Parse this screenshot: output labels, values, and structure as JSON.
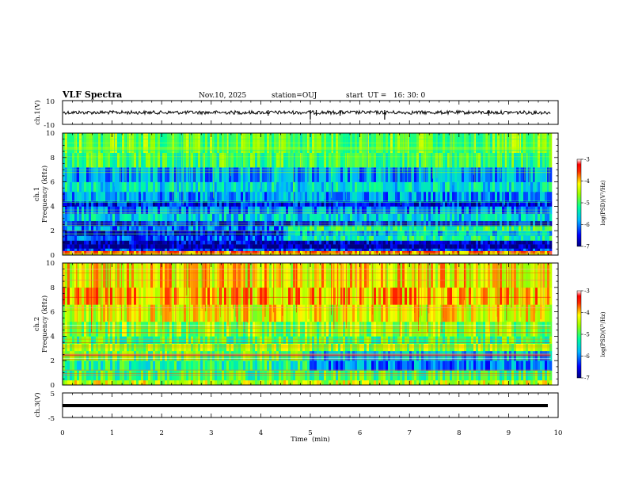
{
  "header": {
    "title": "VLF Spectra",
    "date": "Nov.10, 2025",
    "station": "station=OUJ",
    "start": "start  UT =   16: 30: 0"
  },
  "chart_data": [
    {
      "type": "line",
      "panel": "ch1-waveform",
      "ylabel": "ch.1(V)",
      "ylim": [
        -10,
        10
      ],
      "y_ticks": [
        "10",
        "-10"
      ],
      "xlim": [
        0,
        10
      ],
      "baseline_level": 0,
      "spike_times_min": [
        4.15,
        5.0,
        5.12,
        5.6,
        6.5,
        8.6
      ],
      "line_color": "#000000"
    },
    {
      "type": "heatmap",
      "panel": "ch1-spectrogram",
      "ylabel": "ch.1\nFrequency (kHz)",
      "ylabel_lines": [
        "ch.1",
        "Frequency (kHz)"
      ],
      "ylim": [
        0,
        10
      ],
      "y_ticks": [
        "0",
        "2",
        "4",
        "6",
        "8",
        "10"
      ],
      "xlim": [
        0,
        10
      ],
      "data_end_min": 9.85,
      "bands_khz_level": [
        [
          0.0,
          0.35,
          -3.6
        ],
        [
          0.35,
          0.55,
          -6.3
        ],
        [
          0.55,
          0.9,
          -6.9
        ],
        [
          0.9,
          1.2,
          -6.7
        ],
        [
          1.2,
          1.6,
          -6.2
        ],
        [
          1.6,
          2.0,
          -6.6
        ],
        [
          2.0,
          2.4,
          -6.0
        ],
        [
          2.4,
          2.8,
          -6.4
        ],
        [
          2.8,
          3.4,
          -5.6
        ],
        [
          3.4,
          4.0,
          -6.0
        ],
        [
          4.0,
          4.4,
          -6.5
        ],
        [
          4.4,
          5.2,
          -5.9
        ],
        [
          5.2,
          6.0,
          -5.5
        ],
        [
          6.0,
          7.2,
          -5.9
        ],
        [
          7.2,
          8.4,
          -5.0
        ],
        [
          8.4,
          10.0,
          -4.8
        ]
      ],
      "colorbar": {
        "label": "log(PSD)(V²/Hz)",
        "ticks": [
          "-3",
          "-4",
          "-5",
          "-6",
          "-7"
        ],
        "range": [
          -7,
          -3
        ]
      }
    },
    {
      "type": "heatmap",
      "panel": "ch2-spectrogram",
      "ylabel": "ch.2\nFrequency (kHz)",
      "ylabel_lines": [
        "ch.2",
        "Frequency (kHz)"
      ],
      "ylim": [
        0,
        10
      ],
      "y_ticks": [
        "0",
        "2",
        "4",
        "6",
        "8",
        "10"
      ],
      "xlim": [
        0,
        10
      ],
      "data_end_min": 9.85,
      "bands_khz_level": [
        [
          0.0,
          0.4,
          -4.4
        ],
        [
          0.4,
          1.2,
          -5.0
        ],
        [
          1.2,
          2.0,
          -5.2
        ],
        [
          2.0,
          2.8,
          -4.9
        ],
        [
          2.8,
          3.4,
          -4.6
        ],
        [
          3.4,
          4.0,
          -5.0
        ],
        [
          4.0,
          5.2,
          -4.7
        ],
        [
          5.2,
          6.6,
          -4.3
        ],
        [
          6.6,
          8.0,
          -4.0
        ],
        [
          8.0,
          10.0,
          -4.2
        ]
      ],
      "colorbar": {
        "label": "log(PSD)(V²/Hz)",
        "ticks": [
          "-3",
          "-4",
          "-5",
          "-6",
          "-7"
        ],
        "range": [
          -7,
          -3
        ]
      }
    },
    {
      "type": "line",
      "panel": "ch3-waveform",
      "ylabel": "ch.3(V)",
      "ylim": [
        -5,
        5
      ],
      "y_ticks": [
        "5",
        "-5"
      ],
      "xlim": [
        0,
        10
      ],
      "baseline_level": 0,
      "x_ticks": [
        "0",
        "1",
        "2",
        "3",
        "4",
        "5",
        "6",
        "7",
        "8",
        "9",
        "10"
      ],
      "xlabel": "Time  (min)",
      "line_color": "#000000"
    }
  ]
}
